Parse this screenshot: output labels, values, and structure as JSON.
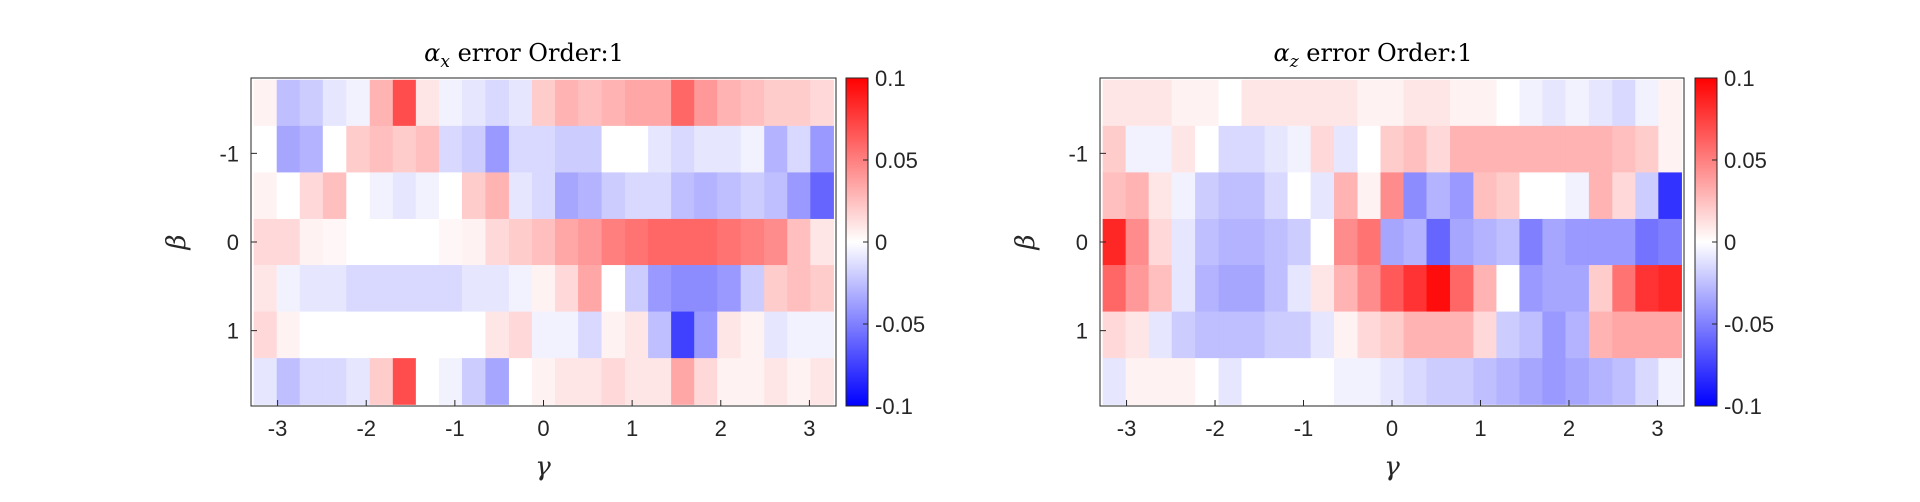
{
  "chart_data": [
    {
      "type": "heatmap",
      "title": "α_x error Order:1",
      "title_main": "α",
      "title_sub": "x",
      "title_rest": " error Order:1",
      "xlabel": "γ",
      "ylabel": "β",
      "xlim": [
        -3.3,
        3.3
      ],
      "ylim": [
        -1.85,
        1.85
      ],
      "y_reversed": true,
      "xticks": [
        -3,
        -2,
        -1,
        0,
        1,
        2,
        3
      ],
      "yticks": [
        -1,
        0,
        1
      ],
      "x": [
        -3.14,
        -2.88,
        -2.62,
        -2.36,
        -2.09,
        -1.83,
        -1.57,
        -1.31,
        -1.05,
        -0.79,
        -0.52,
        -0.26,
        0.0,
        0.26,
        0.52,
        0.79,
        1.05,
        1.31,
        1.57,
        1.83,
        2.09,
        2.36,
        2.62,
        2.88,
        3.14
      ],
      "y": [
        -1.57,
        -1.05,
        -0.52,
        0.0,
        0.52,
        1.05,
        1.57
      ],
      "z": [
        [
          0.005,
          -0.025,
          -0.02,
          -0.01,
          -0.005,
          0.03,
          0.07,
          0.01,
          -0.005,
          -0.01,
          -0.015,
          -0.01,
          0.02,
          0.03,
          0.025,
          0.03,
          0.035,
          0.035,
          0.06,
          0.04,
          0.03,
          0.025,
          0.02,
          0.02,
          0.015
        ],
        [
          0.0,
          -0.035,
          -0.03,
          0.0,
          0.02,
          0.025,
          0.02,
          0.025,
          -0.015,
          -0.02,
          -0.04,
          -0.015,
          -0.015,
          -0.02,
          -0.02,
          0.0,
          0.0,
          -0.01,
          -0.015,
          -0.01,
          -0.01,
          -0.005,
          -0.03,
          -0.015,
          -0.04
        ],
        [
          0.005,
          0.0,
          0.015,
          0.025,
          0.0,
          -0.005,
          -0.01,
          -0.005,
          0.0,
          0.02,
          0.03,
          -0.01,
          -0.015,
          -0.035,
          -0.03,
          -0.02,
          -0.015,
          -0.015,
          -0.025,
          -0.03,
          -0.025,
          -0.02,
          -0.025,
          -0.04,
          -0.06
        ],
        [
          0.015,
          0.015,
          0.005,
          0.003,
          0.0,
          0.0,
          0.0,
          0.0,
          0.003,
          0.005,
          0.015,
          0.02,
          0.025,
          0.035,
          0.04,
          0.05,
          0.055,
          0.06,
          0.06,
          0.06,
          0.055,
          0.05,
          0.045,
          0.025,
          0.01
        ],
        [
          0.01,
          -0.005,
          -0.01,
          -0.01,
          -0.015,
          -0.015,
          -0.015,
          -0.015,
          -0.015,
          -0.01,
          -0.01,
          -0.005,
          0.005,
          0.015,
          0.035,
          0.0,
          -0.02,
          -0.04,
          -0.045,
          -0.045,
          -0.04,
          -0.02,
          0.02,
          0.025,
          0.02
        ],
        [
          0.015,
          0.005,
          0.0,
          0.0,
          0.0,
          0.0,
          0.0,
          0.0,
          0.0,
          0.0,
          0.01,
          0.015,
          -0.005,
          -0.005,
          -0.015,
          0.005,
          0.01,
          -0.025,
          -0.075,
          -0.04,
          0.01,
          0.005,
          -0.01,
          -0.005,
          -0.005
        ],
        [
          -0.01,
          -0.025,
          -0.015,
          -0.015,
          -0.01,
          0.02,
          0.07,
          0.0,
          -0.005,
          -0.02,
          -0.035,
          0.0,
          0.005,
          0.01,
          0.01,
          0.015,
          0.01,
          0.01,
          0.035,
          0.015,
          0.005,
          0.005,
          0.01,
          0.005,
          0.01
        ]
      ],
      "colorbar": {
        "limits": [
          -0.1,
          0.1
        ],
        "ticks": [
          "0.1",
          "0.05",
          "0",
          "-0.05",
          "-0.1"
        ],
        "colormap": [
          "#0000ff",
          "#ffffff",
          "#ff0000"
        ]
      }
    },
    {
      "type": "heatmap",
      "title": "α_z error Order:1",
      "title_main": "α",
      "title_sub": "z",
      "title_rest": " error Order:1",
      "xlabel": "γ",
      "ylabel": "β",
      "xlim": [
        -3.3,
        3.3
      ],
      "ylim": [
        -1.85,
        1.85
      ],
      "y_reversed": true,
      "xticks": [
        -3,
        -2,
        -1,
        0,
        1,
        2,
        3
      ],
      "yticks": [
        -1,
        0,
        1
      ],
      "x": [
        -3.14,
        -2.88,
        -2.62,
        -2.36,
        -2.09,
        -1.83,
        -1.57,
        -1.31,
        -1.05,
        -0.79,
        -0.52,
        -0.26,
        0.0,
        0.26,
        0.52,
        0.79,
        1.05,
        1.31,
        1.57,
        1.83,
        2.09,
        2.36,
        2.62,
        2.88,
        3.14
      ],
      "y": [
        -1.57,
        -1.05,
        -0.52,
        0.0,
        0.52,
        1.05,
        1.57
      ],
      "z": [
        [
          0.01,
          0.01,
          0.01,
          0.005,
          0.005,
          0.0,
          0.01,
          0.01,
          0.01,
          0.01,
          0.01,
          0.005,
          0.005,
          0.01,
          0.01,
          0.005,
          0.005,
          0.0,
          -0.005,
          -0.01,
          -0.005,
          -0.01,
          -0.015,
          -0.005,
          0.005
        ],
        [
          0.02,
          -0.005,
          -0.005,
          0.01,
          0.0,
          -0.015,
          -0.015,
          -0.01,
          -0.005,
          0.015,
          -0.01,
          0.0,
          0.02,
          0.025,
          0.015,
          0.03,
          0.03,
          0.03,
          0.03,
          0.03,
          0.03,
          0.03,
          0.025,
          0.02,
          0.005
        ],
        [
          0.025,
          0.03,
          0.01,
          -0.005,
          -0.02,
          -0.025,
          -0.025,
          -0.015,
          0.0,
          -0.01,
          0.03,
          0.005,
          0.045,
          -0.045,
          -0.03,
          -0.04,
          0.025,
          0.02,
          0.0,
          0.0,
          -0.005,
          0.03,
          0.015,
          -0.02,
          -0.08
        ],
        [
          0.085,
          0.045,
          0.015,
          -0.01,
          -0.025,
          -0.03,
          -0.03,
          -0.025,
          -0.02,
          0.0,
          0.045,
          0.055,
          -0.035,
          -0.03,
          -0.06,
          -0.035,
          -0.03,
          -0.025,
          -0.05,
          -0.035,
          -0.04,
          -0.04,
          -0.04,
          -0.055,
          -0.05
        ],
        [
          0.06,
          0.04,
          0.025,
          -0.01,
          -0.03,
          -0.035,
          -0.035,
          -0.025,
          -0.01,
          0.01,
          0.03,
          0.045,
          0.065,
          0.08,
          0.095,
          0.06,
          0.03,
          0.0,
          -0.04,
          -0.035,
          -0.035,
          0.02,
          0.055,
          0.08,
          0.085
        ],
        [
          0.015,
          0.01,
          -0.01,
          -0.02,
          -0.025,
          -0.025,
          -0.025,
          -0.02,
          -0.02,
          -0.01,
          0.005,
          0.015,
          0.02,
          0.03,
          0.03,
          0.03,
          0.015,
          -0.02,
          -0.025,
          -0.04,
          -0.03,
          0.03,
          0.035,
          0.035,
          0.035
        ],
        [
          -0.01,
          0.005,
          0.005,
          0.005,
          0.0,
          -0.01,
          0.0,
          0.0,
          0.0,
          0.0,
          -0.005,
          -0.005,
          -0.01,
          -0.015,
          -0.02,
          -0.02,
          -0.025,
          -0.03,
          -0.035,
          -0.04,
          -0.035,
          -0.03,
          -0.025,
          -0.015,
          -0.005
        ]
      ],
      "colorbar": {
        "limits": [
          -0.1,
          0.1
        ],
        "ticks": [
          "0.1",
          "0.05",
          "0",
          "-0.05",
          "-0.1"
        ],
        "colormap": [
          "#0000ff",
          "#ffffff",
          "#ff0000"
        ]
      }
    }
  ]
}
